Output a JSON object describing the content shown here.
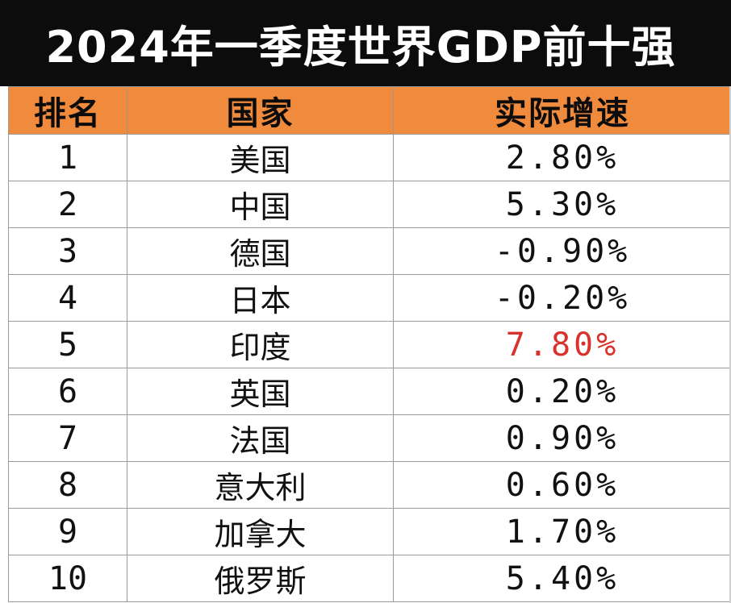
{
  "title": "2024年一季度世界GDP前十强",
  "table": {
    "headers": [
      "排名",
      "国家",
      "实际增速"
    ],
    "rows": [
      {
        "rank": "1",
        "country": "美国",
        "growth": "2.80%",
        "highlight": false
      },
      {
        "rank": "2",
        "country": "中国",
        "growth": "5.30%",
        "highlight": false
      },
      {
        "rank": "3",
        "country": "德国",
        "growth": "-0.90%",
        "highlight": false
      },
      {
        "rank": "4",
        "country": "日本",
        "growth": "-0.20%",
        "highlight": false
      },
      {
        "rank": "5",
        "country": "印度",
        "growth": "7.80%",
        "highlight": true
      },
      {
        "rank": "6",
        "country": "英国",
        "growth": "0.20%",
        "highlight": false
      },
      {
        "rank": "7",
        "country": "法国",
        "growth": "0.90%",
        "highlight": false
      },
      {
        "rank": "8",
        "country": "意大利",
        "growth": "0.60%",
        "highlight": false
      },
      {
        "rank": "9",
        "country": "加拿大",
        "growth": "1.70%",
        "highlight": false
      },
      {
        "rank": "10",
        "country": "俄罗斯",
        "growth": "5.40%",
        "highlight": false
      }
    ]
  },
  "colors": {
    "title_background": "#0c0c0c",
    "title_text": "#ffffff",
    "header_background": "#f08a3c",
    "highlight_text": "#d8322c"
  }
}
